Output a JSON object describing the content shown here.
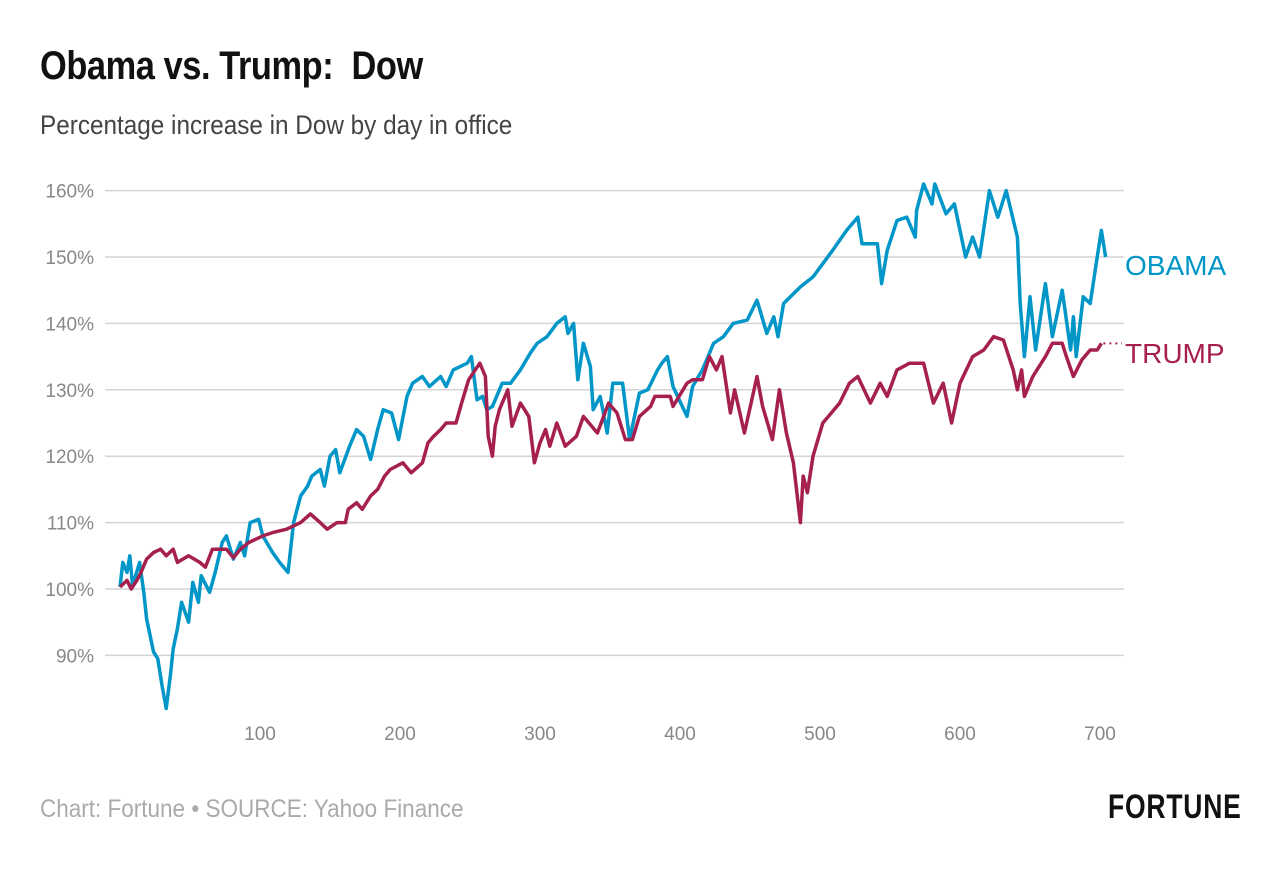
{
  "title": "Obama vs. Trump:  Dow",
  "subtitle": "Percentage increase in Dow by day in office",
  "footer": "Chart: Fortune • SOURCE: Yahoo Finance",
  "logo": "FORTUNE",
  "chart_data": {
    "type": "line",
    "title": "Obama vs. Trump:  Dow",
    "subtitle": "Percentage increase in Dow by day in office",
    "xlabel": "",
    "ylabel": "",
    "xlim": [
      0,
      725
    ],
    "ylim": [
      80,
      162
    ],
    "grid": true,
    "x_ticks": [
      100,
      200,
      300,
      400,
      500,
      600,
      700
    ],
    "y_ticks": [
      90,
      100,
      110,
      120,
      130,
      140,
      150,
      160
    ],
    "y_tick_labels": [
      "90%",
      "100%",
      "110%",
      "120%",
      "130%",
      "140%",
      "150%",
      "160%"
    ],
    "legend": "direct labels at right end of lines",
    "series": [
      {
        "name": "OBAMA",
        "color": "#0096c8",
        "points": [
          [
            0,
            100.3
          ],
          [
            2,
            104
          ],
          [
            5,
            102.5
          ],
          [
            7,
            105
          ],
          [
            9,
            100.5
          ],
          [
            14,
            104
          ],
          [
            17,
            99.5
          ],
          [
            19,
            95.5
          ],
          [
            24,
            90.5
          ],
          [
            27,
            89.5
          ],
          [
            30,
            85.5
          ],
          [
            33,
            82
          ],
          [
            36,
            87
          ],
          [
            38,
            91
          ],
          [
            41,
            94
          ],
          [
            44,
            98
          ],
          [
            49,
            95
          ],
          [
            52,
            101
          ],
          [
            56,
            98
          ],
          [
            58,
            102
          ],
          [
            64,
            99.5
          ],
          [
            68,
            102.5
          ],
          [
            73,
            107
          ],
          [
            76,
            108
          ],
          [
            81,
            104.5
          ],
          [
            86,
            107
          ],
          [
            89,
            105
          ],
          [
            93,
            110
          ],
          [
            99,
            110.5
          ],
          [
            102,
            108
          ],
          [
            109,
            105.5
          ],
          [
            114,
            104
          ],
          [
            120,
            102.5
          ],
          [
            124,
            110
          ],
          [
            129,
            114
          ],
          [
            134,
            115.5
          ],
          [
            137,
            117
          ],
          [
            143,
            118
          ],
          [
            146,
            115.5
          ],
          [
            150,
            120
          ],
          [
            154,
            121
          ],
          [
            157,
            117.5
          ],
          [
            164,
            121.5
          ],
          [
            169,
            124
          ],
          [
            174,
            123
          ],
          [
            179,
            119.5
          ],
          [
            184,
            124
          ],
          [
            188,
            127
          ],
          [
            194,
            126.5
          ],
          [
            199,
            122.5
          ],
          [
            205,
            129
          ],
          [
            209,
            131
          ],
          [
            216,
            132
          ],
          [
            221,
            130.5
          ],
          [
            229,
            132
          ],
          [
            233,
            130.5
          ],
          [
            238,
            133
          ],
          [
            248,
            134
          ],
          [
            251,
            135
          ],
          [
            255,
            128.5
          ],
          [
            259,
            129
          ],
          [
            262,
            127
          ],
          [
            266,
            127.5
          ],
          [
            273,
            131
          ],
          [
            279,
            131
          ],
          [
            286,
            133
          ],
          [
            293,
            135.5
          ],
          [
            298,
            137
          ],
          [
            305,
            138
          ],
          [
            312,
            140
          ],
          [
            318,
            141
          ],
          [
            320,
            138.5
          ],
          [
            324,
            140
          ],
          [
            327,
            131.5
          ],
          [
            331,
            137
          ],
          [
            336,
            133.5
          ],
          [
            338,
            127
          ],
          [
            343,
            129
          ],
          [
            348,
            123.5
          ],
          [
            352,
            131
          ],
          [
            359,
            131
          ],
          [
            364,
            122.5
          ],
          [
            371,
            129.5
          ],
          [
            377,
            130
          ],
          [
            384,
            133
          ],
          [
            387,
            134
          ],
          [
            391,
            135
          ],
          [
            395,
            130.5
          ],
          [
            405,
            126
          ],
          [
            409,
            130.5
          ],
          [
            416,
            133
          ],
          [
            424,
            137
          ],
          [
            431,
            138
          ],
          [
            438,
            140
          ],
          [
            448,
            140.5
          ],
          [
            455,
            143.5
          ],
          [
            462,
            138.5
          ],
          [
            467,
            141
          ],
          [
            470,
            138
          ],
          [
            474,
            143
          ],
          [
            486,
            145.5
          ],
          [
            495,
            147
          ],
          [
            509,
            151
          ],
          [
            519,
            154
          ],
          [
            527,
            156
          ],
          [
            530,
            152
          ],
          [
            541,
            152
          ],
          [
            544,
            146
          ],
          [
            548,
            151
          ],
          [
            555,
            155.5
          ],
          [
            562,
            156
          ],
          [
            568,
            153
          ],
          [
            569,
            157
          ],
          [
            574,
            161
          ],
          [
            580,
            158
          ],
          [
            582,
            161
          ],
          [
            590,
            156.5
          ],
          [
            596,
            158
          ],
          [
            604,
            150
          ],
          [
            609,
            153
          ],
          [
            614,
            150
          ],
          [
            621,
            160
          ],
          [
            627,
            156
          ],
          [
            633,
            160
          ],
          [
            641,
            153
          ],
          [
            643,
            143
          ],
          [
            646,
            135
          ],
          [
            650,
            144
          ],
          [
            654,
            136
          ],
          [
            661,
            146
          ],
          [
            666,
            138
          ],
          [
            673,
            145
          ],
          [
            679,
            136
          ],
          [
            681,
            141
          ],
          [
            683,
            135
          ],
          [
            688,
            144
          ],
          [
            693,
            143
          ],
          [
            698,
            150
          ],
          [
            701,
            154
          ],
          [
            704,
            150
          ]
        ]
      },
      {
        "name": "TRUMP",
        "color": "#a6204f",
        "points": [
          [
            0,
            100.3
          ],
          [
            5,
            101.3
          ],
          [
            8,
            100
          ],
          [
            12,
            101.3
          ],
          [
            15,
            102.5
          ],
          [
            19,
            104.5
          ],
          [
            24,
            105.5
          ],
          [
            29,
            106
          ],
          [
            33,
            105
          ],
          [
            38,
            106
          ],
          [
            41,
            104
          ],
          [
            49,
            105
          ],
          [
            57,
            104
          ],
          [
            61,
            103.3
          ],
          [
            66,
            106
          ],
          [
            76,
            106
          ],
          [
            81,
            104.7
          ],
          [
            86,
            106
          ],
          [
            92,
            107
          ],
          [
            102,
            108
          ],
          [
            109,
            108.5
          ],
          [
            119,
            109
          ],
          [
            129,
            110
          ],
          [
            136,
            111.3
          ],
          [
            143,
            110
          ],
          [
            148,
            109
          ],
          [
            155,
            110
          ],
          [
            161,
            110
          ],
          [
            163,
            112
          ],
          [
            169,
            113
          ],
          [
            173,
            112
          ],
          [
            179,
            114
          ],
          [
            184,
            115
          ],
          [
            189,
            117
          ],
          [
            193,
            118
          ],
          [
            202,
            119
          ],
          [
            208,
            117.5
          ],
          [
            216,
            119
          ],
          [
            220,
            122
          ],
          [
            224,
            123
          ],
          [
            229,
            124
          ],
          [
            233,
            125
          ],
          [
            240,
            125
          ],
          [
            244,
            128
          ],
          [
            249,
            131.5
          ],
          [
            257,
            134
          ],
          [
            261,
            132
          ],
          [
            263,
            123
          ],
          [
            266,
            120
          ],
          [
            268,
            124.5
          ],
          [
            271,
            127
          ],
          [
            277,
            130
          ],
          [
            280,
            124.5
          ],
          [
            286,
            128
          ],
          [
            292,
            126
          ],
          [
            296,
            119
          ],
          [
            300,
            122
          ],
          [
            304,
            124
          ],
          [
            307,
            121.5
          ],
          [
            312,
            125
          ],
          [
            318,
            121.5
          ],
          [
            326,
            123
          ],
          [
            331,
            126
          ],
          [
            341,
            123.5
          ],
          [
            349,
            128
          ],
          [
            355,
            126.5
          ],
          [
            361,
            122.5
          ],
          [
            366,
            122.5
          ],
          [
            371,
            126
          ],
          [
            379,
            127.5
          ],
          [
            382,
            129
          ],
          [
            393,
            129
          ],
          [
            395,
            127.5
          ],
          [
            405,
            131
          ],
          [
            409,
            131.5
          ],
          [
            416,
            131.5
          ],
          [
            421,
            135
          ],
          [
            426,
            133
          ],
          [
            430,
            135
          ],
          [
            436,
            126.5
          ],
          [
            439,
            130
          ],
          [
            446,
            123.5
          ],
          [
            455,
            132
          ],
          [
            459,
            127.5
          ],
          [
            466,
            122.5
          ],
          [
            471,
            130
          ],
          [
            476,
            123.5
          ],
          [
            481,
            119
          ],
          [
            486,
            110
          ],
          [
            488,
            117
          ],
          [
            491,
            114.5
          ],
          [
            495,
            120
          ],
          [
            502,
            125
          ],
          [
            514,
            128
          ],
          [
            521,
            131
          ],
          [
            527,
            132
          ],
          [
            536,
            128
          ],
          [
            543,
            131
          ],
          [
            548,
            129
          ],
          [
            555,
            133
          ],
          [
            564,
            134
          ],
          [
            574,
            134
          ],
          [
            581,
            128
          ],
          [
            588,
            131
          ],
          [
            594,
            125
          ],
          [
            600,
            131
          ],
          [
            609,
            135
          ],
          [
            617,
            136
          ],
          [
            624,
            138
          ],
          [
            631,
            137.5
          ],
          [
            638,
            133
          ],
          [
            641,
            130
          ],
          [
            644,
            133
          ],
          [
            646,
            129
          ],
          [
            652,
            132
          ],
          [
            661,
            135
          ],
          [
            666,
            137
          ],
          [
            673,
            137
          ],
          [
            676,
            135
          ],
          [
            681,
            132
          ],
          [
            687,
            134.5
          ],
          [
            693,
            136
          ],
          [
            698,
            136
          ],
          [
            701,
            137
          ]
        ]
      }
    ]
  }
}
